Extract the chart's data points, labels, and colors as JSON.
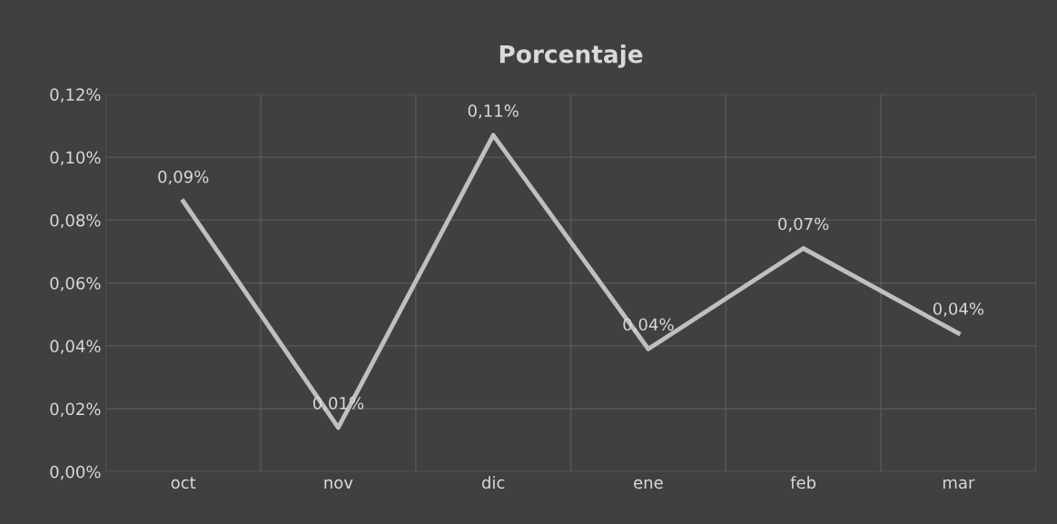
{
  "chart_data": {
    "type": "line",
    "title": "Porcentaje",
    "categories": [
      "oct",
      "nov",
      "dic",
      "ene",
      "feb",
      "mar"
    ],
    "series": [
      {
        "color": "#bfbfbf",
        "values": [
          0.086,
          0.014,
          0.107,
          0.039,
          0.071,
          0.044
        ],
        "value_labels": [
          "0,09%",
          "0,01%",
          "0,11%",
          "0,04%",
          "0,07%",
          "0,04%"
        ]
      }
    ],
    "ylim": [
      0,
      0.12
    ],
    "yticks": [
      {
        "value": 0,
        "label": "0,00%"
      },
      {
        "value": 0.02,
        "label": "0,02%"
      },
      {
        "value": 0.04,
        "label": "0,04%"
      },
      {
        "value": 0.06,
        "label": "0,06%"
      },
      {
        "value": 0.08,
        "label": "0,08%"
      },
      {
        "value": 0.1,
        "label": "0,10%"
      },
      {
        "value": 0.12,
        "label": "0,12%"
      }
    ],
    "grid": true,
    "legend": false,
    "marker": "none",
    "line_style": "solid"
  }
}
